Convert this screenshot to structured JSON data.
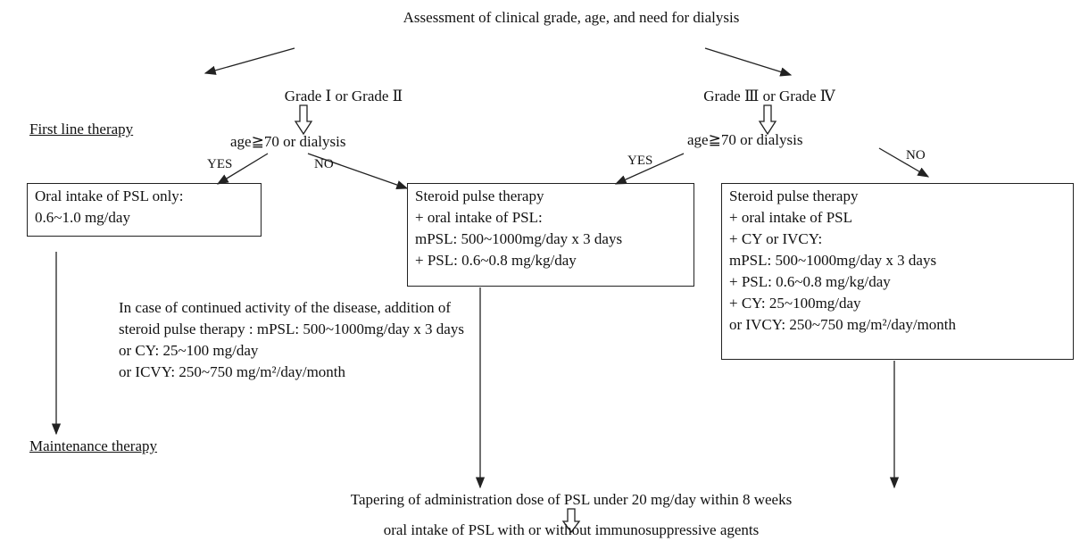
{
  "title": "Assessment of clinical grade, age, and need for dialysis",
  "labels": {
    "first_line": "First line therapy",
    "maintenance": "Maintenance therapy"
  },
  "left": {
    "grade": "Grade Ⅰ or Grade Ⅱ",
    "condition": "age≧70 or dialysis",
    "yes": "YES",
    "no": "NO",
    "yes_box": [
      "Oral intake of PSL only:",
      "0.6~1.0 mg/day"
    ],
    "continued": [
      "In case of continued activity of the disease, addition of",
      "steroid pulse therapy : mPSL: 500~1000mg/day x 3 days",
      "or CY: 25~100 mg/day",
      "or  ICVY: 250~750 mg/m²/day/month"
    ]
  },
  "right": {
    "grade": "Grade Ⅲ or Grade Ⅳ",
    "condition": "age≧70 or dialysis",
    "yes": "YES",
    "no": "NO",
    "yes_box": [
      "Steroid pulse therapy",
      "+ oral intake of PSL:",
      "mPSL: 500~1000mg/day x 3 days",
      "+ PSL: 0.6~0.8 mg/kg/day"
    ],
    "no_box": [
      "Steroid pulse therapy",
      "+ oral intake of PSL",
      "+ CY or IVCY:",
      "mPSL: 500~1000mg/day x 3 days",
      "+ PSL: 0.6~0.8 mg/kg/day",
      "+ CY: 25~100mg/day",
      "or IVCY: 250~750 mg/m²/day/month"
    ]
  },
  "tapering": "Tapering of administration dose of PSL under 20 mg/day within 8 weeks",
  "final": "oral intake of PSL with or without immunosuppressive agents"
}
